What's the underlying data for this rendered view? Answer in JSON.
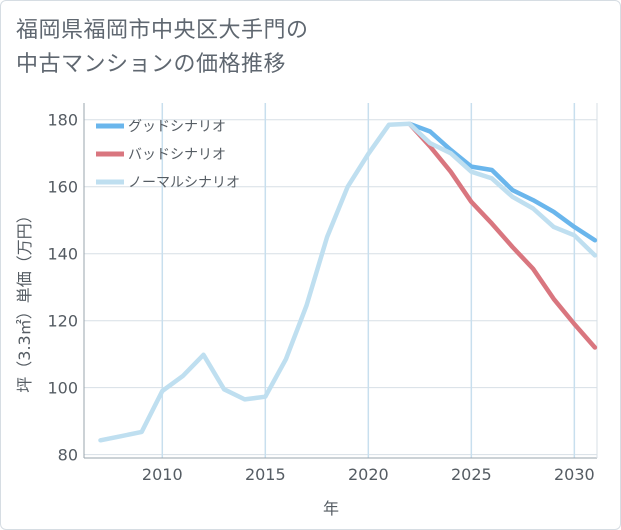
{
  "title_lines": [
    "福岡県福岡市中央区大手門の",
    "中古マンションの価格推移"
  ],
  "chart_data": {
    "type": "line",
    "xlabel": "年",
    "ylabel": "坪（3.3㎡）単価（万円）",
    "xlim": [
      2006.2,
      2031.1
    ],
    "ylim": [
      79,
      185
    ],
    "xticks": [
      2010,
      2015,
      2020,
      2025,
      2030
    ],
    "yticks": [
      80,
      100,
      120,
      140,
      160,
      180
    ],
    "grid": true,
    "legend_position": "top-left",
    "series": [
      {
        "name": "グッドシナリオ",
        "color": "#6ab6ec",
        "x": [
          2022,
          2023,
          2024,
          2025,
          2026,
          2027,
          2028,
          2029,
          2030,
          2031
        ],
        "y": [
          178.8,
          176.5,
          171.0,
          166.0,
          165.0,
          159.0,
          156.0,
          152.5,
          148.0,
          144.0
        ]
      },
      {
        "name": "バッドシナリオ",
        "color": "#d9767f",
        "x": [
          2022,
          2023,
          2024,
          2025,
          2026,
          2027,
          2028,
          2029,
          2030,
          2031
        ],
        "y": [
          178.8,
          172.0,
          164.5,
          155.5,
          149.0,
          142.0,
          135.5,
          126.5,
          119.0,
          112.0
        ]
      },
      {
        "name": "ノーマルシナリオ",
        "color": "#bfdff0",
        "x": [
          2007,
          2008,
          2009,
          2010,
          2011,
          2012,
          2013,
          2014,
          2015,
          2016,
          2017,
          2018,
          2019,
          2020,
          2021,
          2022,
          2023,
          2024,
          2025,
          2026,
          2027,
          2028,
          2029,
          2030,
          2031
        ],
        "y": [
          84.3,
          85.5,
          86.8,
          99.0,
          103.5,
          109.8,
          99.5,
          96.5,
          97.3,
          108.5,
          124.5,
          145.0,
          160.0,
          169.8,
          178.5,
          178.8,
          173.0,
          170.0,
          164.5,
          162.5,
          157.0,
          153.5,
          148.0,
          145.5,
          139.5
        ]
      }
    ]
  }
}
